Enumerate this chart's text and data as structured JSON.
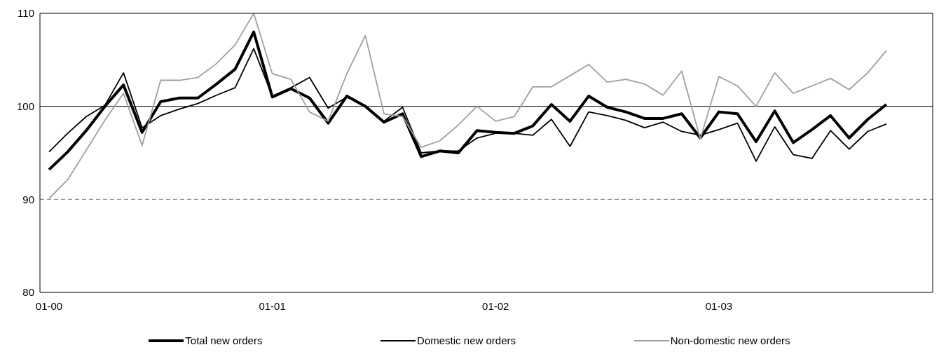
{
  "chart_data": {
    "type": "line",
    "categories": [
      "01-00",
      null,
      null,
      null,
      null,
      null,
      null,
      null,
      null,
      null,
      null,
      null,
      "01-01",
      null,
      null,
      null,
      null,
      null,
      null,
      null,
      null,
      null,
      null,
      null,
      "01-02",
      null,
      null,
      null,
      null,
      null,
      null,
      null,
      null,
      null,
      null,
      null,
      "01-03",
      null,
      null,
      null,
      null,
      null,
      null,
      null,
      null,
      null,
      null,
      null
    ],
    "series": [
      {
        "name": "Total new orders",
        "color": "#000000",
        "values": [
          93.2,
          95.1,
          97.4,
          100.0,
          102.3,
          97.2,
          100.5,
          100.9,
          100.9,
          102.4,
          104.0,
          108.0,
          101.0,
          101.9,
          100.9,
          98.2,
          101.1,
          100.0,
          98.3,
          99.2,
          94.6,
          95.2,
          95.0,
          97.4,
          97.2,
          97.1,
          97.9,
          100.2,
          98.4,
          101.1,
          99.9,
          99.4,
          98.7,
          98.7,
          99.2,
          96.6,
          99.4,
          99.2,
          96.2,
          99.5,
          96.1,
          97.5,
          99.0,
          96.6,
          98.6,
          100.2,
          null,
          null
        ]
      },
      {
        "name": "Domestic new orders",
        "color": "#000000",
        "values": [
          95.1,
          97.1,
          98.9,
          100.1,
          103.6,
          97.7,
          99.0,
          99.7,
          100.3,
          101.2,
          102.0,
          106.2,
          101.1,
          102.0,
          103.1,
          99.8,
          101.0,
          100.1,
          98.4,
          99.9,
          95.0,
          95.2,
          95.2,
          96.6,
          97.1,
          97.1,
          96.9,
          98.6,
          95.7,
          99.4,
          99.0,
          98.5,
          97.7,
          98.3,
          97.3,
          96.9,
          97.5,
          98.2,
          94.1,
          97.8,
          94.8,
          94.4,
          97.4,
          95.4,
          97.3,
          98.1,
          null,
          null
        ]
      },
      {
        "name": "Non-domestic new orders",
        "color": "#a0a0a0",
        "values": [
          90.1,
          92.1,
          95.3,
          98.5,
          101.4,
          95.8,
          102.8,
          102.8,
          103.1,
          104.6,
          106.6,
          110.0,
          103.5,
          102.9,
          99.4,
          98.4,
          103.5,
          107.6,
          99.2,
          98.9,
          95.6,
          96.3,
          98.0,
          100.0,
          98.4,
          98.9,
          102.1,
          102.1,
          103.3,
          104.5,
          102.6,
          102.9,
          102.4,
          101.2,
          103.8,
          96.5,
          103.2,
          102.2,
          100.0,
          103.6,
          101.4,
          102.2,
          103.0,
          101.8,
          103.6,
          106.0,
          null,
          null
        ]
      }
    ],
    "ylim": [
      80,
      110
    ],
    "yticks": [
      80,
      90,
      100,
      110
    ],
    "grid": false,
    "legend": "bottom",
    "marker": "none",
    "line_style": "solid",
    "ref_lines": [
      {
        "axis": "y",
        "value": 100,
        "color": "#000000",
        "line_style": "solid"
      },
      {
        "axis": "y",
        "value": 90,
        "color": "#808080",
        "line_style": "dashed"
      }
    ]
  }
}
